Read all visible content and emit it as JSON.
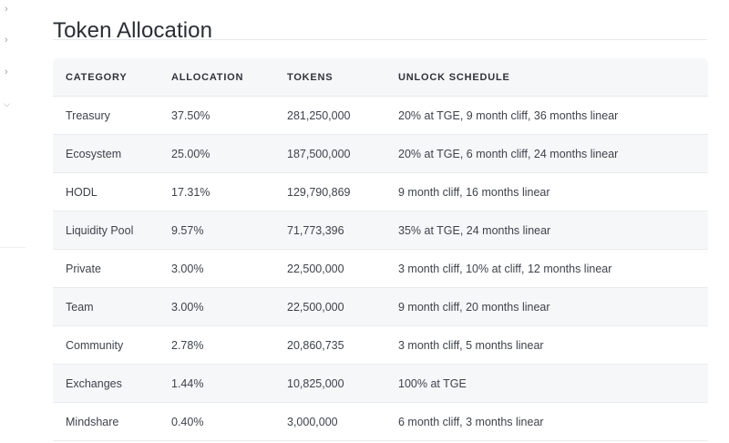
{
  "page": {
    "title": "Token Allocation"
  },
  "sidebar": {
    "chevrons": [
      "chevron-right-icon",
      "chevron-right-icon",
      "chevron-right-icon",
      "chevron-down-icon"
    ]
  },
  "table": {
    "headers": [
      "CATEGORY",
      "ALLOCATION",
      "TOKENS",
      "UNLOCK SCHEDULE"
    ],
    "rows": [
      {
        "category": "Treasury",
        "allocation": "37.50%",
        "tokens": "281,250,000",
        "schedule": "20% at TGE, 9 month cliff, 36 months linear"
      },
      {
        "category": "Ecosystem",
        "allocation": "25.00%",
        "tokens": "187,500,000",
        "schedule": "20% at TGE, 6 month cliff, 24 months linear"
      },
      {
        "category": "HODL",
        "allocation": "17.31%",
        "tokens": "129,790,869",
        "schedule": "9 month cliff, 16 months linear"
      },
      {
        "category": "Liquidity Pool",
        "allocation": "9.57%",
        "tokens": "71,773,396",
        "schedule": "35% at TGE, 24 months linear"
      },
      {
        "category": "Private",
        "allocation": "3.00%",
        "tokens": "22,500,000",
        "schedule": "3 month cliff, 10% at cliff, 12 months linear"
      },
      {
        "category": "Team",
        "allocation": "3.00%",
        "tokens": "22,500,000",
        "schedule": "9 month cliff, 20 months linear"
      },
      {
        "category": "Community",
        "allocation": "2.78%",
        "tokens": "20,860,735",
        "schedule": "3 month cliff, 5 months linear"
      },
      {
        "category": "Exchanges",
        "allocation": "1.44%",
        "tokens": "10,825,000",
        "schedule": "100% at TGE"
      },
      {
        "category": "Mindshare",
        "allocation": "0.40%",
        "tokens": "3,000,000",
        "schedule": "6 month cliff, 3 months linear"
      }
    ]
  }
}
